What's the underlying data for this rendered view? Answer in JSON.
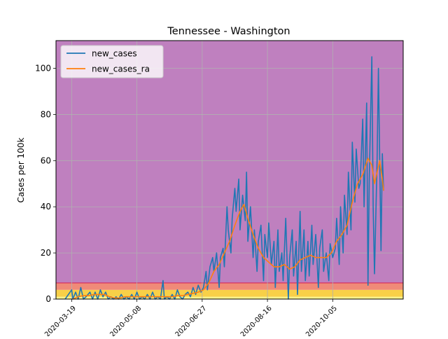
{
  "chart_data": {
    "type": "line",
    "title": "Tennessee - Washington",
    "xlabel": "",
    "ylabel": "Cases per 100k",
    "xlim": [
      "2020-03-07",
      "2020-11-28"
    ],
    "ylim": [
      0,
      112
    ],
    "x_ticks": [
      "2020-03-19",
      "2020-05-08",
      "2020-06-27",
      "2020-08-16",
      "2020-10-05"
    ],
    "y_ticks": [
      0,
      20,
      40,
      60,
      80,
      100
    ],
    "grid": true,
    "legend_position": "top-left",
    "background_bands": [
      {
        "from": 0,
        "to": 1,
        "color": "#f7f28a"
      },
      {
        "from": 1,
        "to": 4,
        "color": "#f8d048"
      },
      {
        "from": 4,
        "to": 7,
        "color": "#f08a78"
      },
      {
        "from": 7,
        "to": 112,
        "color": "#bf80bf"
      }
    ],
    "band_border": {
      "at": 7,
      "color": "#d62a5a"
    },
    "series": [
      {
        "name": "new_cases",
        "color": "#1f77b4",
        "points": [
          [
            "2020-03-14",
            0
          ],
          [
            "2020-03-19",
            4
          ],
          [
            "2020-03-20",
            0
          ],
          [
            "2020-03-22",
            3
          ],
          [
            "2020-03-24",
            0
          ],
          [
            "2020-03-26",
            5
          ],
          [
            "2020-03-28",
            0
          ],
          [
            "2020-03-30",
            1
          ],
          [
            "2020-04-02",
            3
          ],
          [
            "2020-04-04",
            0
          ],
          [
            "2020-04-06",
            3
          ],
          [
            "2020-04-08",
            0
          ],
          [
            "2020-04-10",
            4
          ],
          [
            "2020-04-12",
            1
          ],
          [
            "2020-04-14",
            3
          ],
          [
            "2020-04-16",
            0
          ],
          [
            "2020-04-18",
            1
          ],
          [
            "2020-04-20",
            0
          ],
          [
            "2020-04-22",
            1
          ],
          [
            "2020-04-24",
            0
          ],
          [
            "2020-04-26",
            2
          ],
          [
            "2020-04-28",
            0
          ],
          [
            "2020-04-30",
            1
          ],
          [
            "2020-05-02",
            0
          ],
          [
            "2020-05-04",
            2
          ],
          [
            "2020-05-06",
            0
          ],
          [
            "2020-05-08",
            3
          ],
          [
            "2020-05-10",
            0
          ],
          [
            "2020-05-12",
            1
          ],
          [
            "2020-05-14",
            0
          ],
          [
            "2020-05-16",
            2
          ],
          [
            "2020-05-18",
            0
          ],
          [
            "2020-05-20",
            3
          ],
          [
            "2020-05-22",
            0
          ],
          [
            "2020-05-24",
            1
          ],
          [
            "2020-05-26",
            0
          ],
          [
            "2020-05-28",
            8
          ],
          [
            "2020-05-29",
            0
          ],
          [
            "2020-05-31",
            1
          ],
          [
            "2020-06-02",
            0
          ],
          [
            "2020-06-04",
            2
          ],
          [
            "2020-06-06",
            0
          ],
          [
            "2020-06-08",
            4
          ],
          [
            "2020-06-10",
            1
          ],
          [
            "2020-06-12",
            0
          ],
          [
            "2020-06-14",
            2
          ],
          [
            "2020-06-16",
            3
          ],
          [
            "2020-06-18",
            1
          ],
          [
            "2020-06-20",
            5
          ],
          [
            "2020-06-22",
            2
          ],
          [
            "2020-06-24",
            6
          ],
          [
            "2020-06-26",
            3
          ],
          [
            "2020-06-28",
            5
          ],
          [
            "2020-06-30",
            12
          ],
          [
            "2020-07-01",
            4
          ],
          [
            "2020-07-03",
            14
          ],
          [
            "2020-07-05",
            18
          ],
          [
            "2020-07-06",
            12
          ],
          [
            "2020-07-08",
            20
          ],
          [
            "2020-07-10",
            5
          ],
          [
            "2020-07-11",
            18
          ],
          [
            "2020-07-13",
            22
          ],
          [
            "2020-07-14",
            14
          ],
          [
            "2020-07-16",
            40
          ],
          [
            "2020-07-17",
            30
          ],
          [
            "2020-07-19",
            20
          ],
          [
            "2020-07-20",
            35
          ],
          [
            "2020-07-22",
            48
          ],
          [
            "2020-07-23",
            38
          ],
          [
            "2020-07-25",
            52
          ],
          [
            "2020-07-26",
            30
          ],
          [
            "2020-07-28",
            45
          ],
          [
            "2020-07-30",
            34
          ],
          [
            "2020-07-31",
            55
          ],
          [
            "2020-08-01",
            25
          ],
          [
            "2020-08-03",
            40
          ],
          [
            "2020-08-05",
            18
          ],
          [
            "2020-08-06",
            30
          ],
          [
            "2020-08-08",
            12
          ],
          [
            "2020-08-09",
            25
          ],
          [
            "2020-08-11",
            32
          ],
          [
            "2020-08-13",
            8
          ],
          [
            "2020-08-14",
            28
          ],
          [
            "2020-08-16",
            18
          ],
          [
            "2020-08-17",
            33
          ],
          [
            "2020-08-19",
            15
          ],
          [
            "2020-08-21",
            25
          ],
          [
            "2020-08-22",
            5
          ],
          [
            "2020-08-24",
            30
          ],
          [
            "2020-08-25",
            12
          ],
          [
            "2020-08-27",
            20
          ],
          [
            "2020-08-28",
            8
          ],
          [
            "2020-08-30",
            35
          ],
          [
            "2020-09-01",
            0
          ],
          [
            "2020-09-02",
            18
          ],
          [
            "2020-09-04",
            30
          ],
          [
            "2020-09-05",
            10
          ],
          [
            "2020-09-07",
            25
          ],
          [
            "2020-09-08",
            2
          ],
          [
            "2020-09-10",
            38
          ],
          [
            "2020-09-11",
            12
          ],
          [
            "2020-09-13",
            30
          ],
          [
            "2020-09-14",
            8
          ],
          [
            "2020-09-16",
            25
          ],
          [
            "2020-09-17",
            10
          ],
          [
            "2020-09-19",
            32
          ],
          [
            "2020-09-20",
            15
          ],
          [
            "2020-09-22",
            28
          ],
          [
            "2020-09-24",
            5
          ],
          [
            "2020-09-25",
            22
          ],
          [
            "2020-09-27",
            30
          ],
          [
            "2020-09-28",
            12
          ],
          [
            "2020-09-30",
            20
          ],
          [
            "2020-10-02",
            8
          ],
          [
            "2020-10-03",
            24
          ],
          [
            "2020-10-05",
            18
          ],
          [
            "2020-10-07",
            22
          ],
          [
            "2020-10-08",
            35
          ],
          [
            "2020-10-10",
            15
          ],
          [
            "2020-10-11",
            40
          ],
          [
            "2020-10-13",
            20
          ],
          [
            "2020-10-14",
            45
          ],
          [
            "2020-10-16",
            28
          ],
          [
            "2020-10-17",
            55
          ],
          [
            "2020-10-19",
            30
          ],
          [
            "2020-10-20",
            68
          ],
          [
            "2020-10-22",
            42
          ],
          [
            "2020-10-23",
            65
          ],
          [
            "2020-10-25",
            48
          ],
          [
            "2020-10-26",
            50
          ],
          [
            "2020-10-28",
            78
          ],
          [
            "2020-10-29",
            40
          ],
          [
            "2020-10-31",
            85
          ],
          [
            "2020-11-01",
            6
          ],
          [
            "2020-11-02",
            52
          ],
          [
            "2020-11-04",
            105
          ],
          [
            "2020-11-05",
            40
          ],
          [
            "2020-11-06",
            11
          ],
          [
            "2020-11-08",
            60
          ],
          [
            "2020-11-09",
            100
          ],
          [
            "2020-11-11",
            21
          ],
          [
            "2020-11-12",
            63
          ],
          [
            "2020-11-13",
            47
          ]
        ]
      },
      {
        "name": "new_cases_ra",
        "color": "#ff7f0e",
        "points": [
          [
            "2020-03-20",
            0
          ],
          [
            "2020-03-24",
            1
          ],
          [
            "2020-03-28",
            1.5
          ],
          [
            "2020-04-01",
            1.5
          ],
          [
            "2020-04-05",
            2
          ],
          [
            "2020-04-09",
            2
          ],
          [
            "2020-04-13",
            2
          ],
          [
            "2020-04-17",
            1
          ],
          [
            "2020-04-21",
            0.5
          ],
          [
            "2020-04-25",
            0.5
          ],
          [
            "2020-04-29",
            1
          ],
          [
            "2020-05-03",
            1
          ],
          [
            "2020-05-07",
            1
          ],
          [
            "2020-05-11",
            1
          ],
          [
            "2020-05-15",
            1
          ],
          [
            "2020-05-19",
            1
          ],
          [
            "2020-05-23",
            1
          ],
          [
            "2020-05-27",
            1
          ],
          [
            "2020-05-31",
            1
          ],
          [
            "2020-06-04",
            1
          ],
          [
            "2020-06-08",
            1.5
          ],
          [
            "2020-06-12",
            1.5
          ],
          [
            "2020-06-16",
            2
          ],
          [
            "2020-06-20",
            2.5
          ],
          [
            "2020-06-24",
            3
          ],
          [
            "2020-06-28",
            4
          ],
          [
            "2020-07-02",
            7
          ],
          [
            "2020-07-06",
            12
          ],
          [
            "2020-07-10",
            15
          ],
          [
            "2020-07-14",
            20
          ],
          [
            "2020-07-18",
            25
          ],
          [
            "2020-07-22",
            32
          ],
          [
            "2020-07-26",
            38
          ],
          [
            "2020-07-29",
            41
          ],
          [
            "2020-08-01",
            35
          ],
          [
            "2020-08-05",
            28
          ],
          [
            "2020-08-09",
            22
          ],
          [
            "2020-08-13",
            18
          ],
          [
            "2020-08-17",
            16
          ],
          [
            "2020-08-21",
            14
          ],
          [
            "2020-08-25",
            14
          ],
          [
            "2020-08-29",
            15
          ],
          [
            "2020-09-02",
            13
          ],
          [
            "2020-09-06",
            14
          ],
          [
            "2020-09-10",
            17
          ],
          [
            "2020-09-14",
            18
          ],
          [
            "2020-09-18",
            19
          ],
          [
            "2020-09-22",
            18
          ],
          [
            "2020-09-26",
            18
          ],
          [
            "2020-09-30",
            18
          ],
          [
            "2020-10-04",
            20
          ],
          [
            "2020-10-08",
            25
          ],
          [
            "2020-10-12",
            28
          ],
          [
            "2020-10-16",
            32
          ],
          [
            "2020-10-20",
            42
          ],
          [
            "2020-10-24",
            50
          ],
          [
            "2020-10-28",
            54
          ],
          [
            "2020-11-01",
            61
          ],
          [
            "2020-11-04",
            58
          ],
          [
            "2020-11-06",
            50
          ],
          [
            "2020-11-08",
            55
          ],
          [
            "2020-11-10",
            60
          ],
          [
            "2020-11-12",
            52
          ],
          [
            "2020-11-13",
            47
          ]
        ]
      }
    ]
  }
}
